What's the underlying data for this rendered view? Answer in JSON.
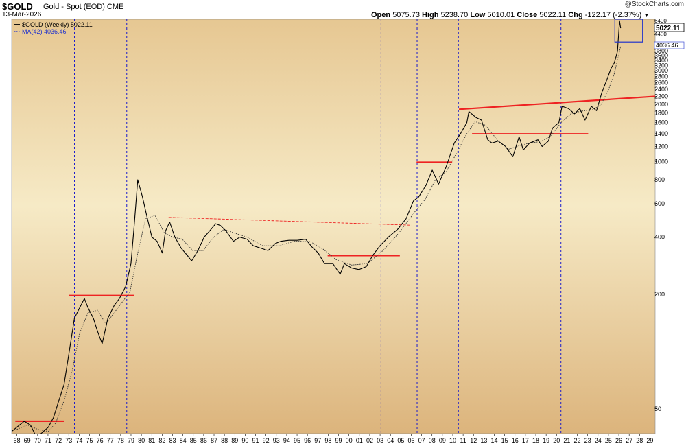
{
  "header": {
    "symbol": "$GOLD",
    "description": "Gold - Spot (EOD)",
    "exchange": "CME",
    "date": "13-Mar-2026",
    "watermark": "@StockCharts.com",
    "quote": {
      "open_label": "Open",
      "open": "5075.73",
      "high_label": "High",
      "high": "5238.70",
      "low_label": "Low",
      "low": "5010.01",
      "close_label": "Close",
      "close": "5022.11",
      "chg_label": "Chg",
      "chg": "-122.17 (-2.37%)"
    }
  },
  "legend": {
    "price_label": "$GOLD (Weekly) 5022.11",
    "ma_label": "MA(42) 4036.46"
  },
  "colors": {
    "plot_top": "#e6c792",
    "plot_mid": "#f6eac6",
    "plot_bottom": "#dcb47c",
    "price_line": "#000000",
    "ma_line": "#333333",
    "support_lines": "#ee2222",
    "cycle_lines": "#1a1acc",
    "highlight_box": "#2233cc"
  },
  "chart_data": {
    "type": "line",
    "title": "$GOLD Gold - Spot (EOD) CME",
    "y_scale": "log",
    "ylim": [
      37,
      5600
    ],
    "xlim": [
      1968.0,
      2029.5
    ],
    "x_tick_labels": [
      "68",
      "69",
      "70",
      "71",
      "72",
      "73",
      "74",
      "75",
      "76",
      "77",
      "78",
      "79",
      "80",
      "81",
      "82",
      "83",
      "84",
      "85",
      "86",
      "87",
      "88",
      "89",
      "90",
      "91",
      "92",
      "93",
      "94",
      "95",
      "96",
      "97",
      "98",
      "99",
      "00",
      "01",
      "02",
      "03",
      "04",
      "05",
      "06",
      "07",
      "08",
      "09",
      "10",
      "11",
      "12",
      "13",
      "14",
      "15",
      "16",
      "17",
      "18",
      "19",
      "20",
      "21",
      "22",
      "23",
      "24",
      "25",
      "26",
      "27",
      "28",
      "29"
    ],
    "y_ticks": [
      50,
      200,
      400,
      600,
      800,
      1000,
      1200,
      1400,
      1600,
      1800,
      2000,
      2200,
      2400,
      2600,
      2800,
      3000,
      3200,
      3400,
      3600,
      3800
    ],
    "y_ticks_top": [
      "6400",
      "5600",
      "4800",
      "4400"
    ],
    "current_price_label": "5022.11",
    "current_ma_label": "4036.46",
    "series": [
      {
        "name": "$GOLD (Weekly)",
        "x": [
          1968.0,
          1968.5,
          1969.2,
          1969.8,
          1970.3,
          1970.8,
          1971.5,
          1972.0,
          1972.5,
          1973.0,
          1973.5,
          1974.0,
          1974.5,
          1974.95,
          1975.3,
          1975.8,
          1976.2,
          1976.65,
          1977.2,
          1977.8,
          1978.3,
          1978.9,
          1979.4,
          1979.7,
          1980.05,
          1980.5,
          1980.9,
          1981.4,
          1981.9,
          1982.4,
          1982.7,
          1983.1,
          1983.6,
          1984.2,
          1984.8,
          1985.2,
          1985.8,
          1986.4,
          1986.9,
          1987.5,
          1987.95,
          1988.5,
          1989.2,
          1989.8,
          1990.5,
          1991.1,
          1991.8,
          1992.5,
          1993.2,
          1993.7,
          1994.5,
          1995.3,
          1996.1,
          1996.7,
          1997.3,
          1997.9,
          1998.7,
          1999.4,
          1999.8,
          2000.5,
          2001.2,
          2001.9,
          2002.5,
          2003.2,
          2004.0,
          2004.9,
          2005.7,
          2006.4,
          2006.9,
          2007.6,
          2008.2,
          2008.8,
          2009.5,
          2010.3,
          2010.9,
          2011.5,
          2011.7,
          2012.4,
          2012.9,
          2013.5,
          2013.9,
          2014.5,
          2015.2,
          2015.9,
          2016.5,
          2016.9,
          2017.5,
          2018.3,
          2018.7,
          2019.3,
          2019.7,
          2020.3,
          2020.6,
          2021.2,
          2021.8,
          2022.3,
          2022.8,
          2023.4,
          2023.9,
          2024.4,
          2024.9,
          2025.3,
          2025.6,
          2025.9,
          2026.1,
          2026.2
        ],
        "values": [
          38,
          40,
          43,
          41,
          36,
          37,
          40,
          45,
          55,
          67,
          100,
          150,
          170,
          190,
          170,
          150,
          128,
          110,
          150,
          175,
          190,
          220,
          290,
          450,
          800,
          650,
          520,
          400,
          380,
          330,
          430,
          480,
          400,
          350,
          320,
          300,
          340,
          400,
          430,
          470,
          460,
          430,
          380,
          400,
          390,
          360,
          350,
          340,
          370,
          380,
          385,
          385,
          390,
          355,
          330,
          290,
          290,
          255,
          290,
          275,
          270,
          280,
          320,
          360,
          400,
          440,
          500,
          620,
          650,
          750,
          900,
          760,
          930,
          1250,
          1400,
          1600,
          1830,
          1700,
          1650,
          1300,
          1250,
          1280,
          1200,
          1060,
          1350,
          1150,
          1250,
          1300,
          1200,
          1280,
          1500,
          1600,
          1950,
          1900,
          1780,
          1900,
          1650,
          1950,
          1850,
          2300,
          2700,
          3100,
          3300,
          3800,
          5500,
          5022
        ]
      },
      {
        "name": "MA(42)",
        "x": [
          1968.5,
          1969.5,
          1970.5,
          1971.5,
          1972.2,
          1973.0,
          1973.8,
          1974.5,
          1975.3,
          1976.2,
          1977.0,
          1977.8,
          1978.5,
          1979.3,
          1980.0,
          1980.8,
          1981.7,
          1982.6,
          1983.4,
          1984.3,
          1985.3,
          1986.3,
          1987.3,
          1988.3,
          1989.3,
          1990.5,
          1992.0,
          1993.5,
          1995.0,
          1996.5,
          1997.8,
          1999.0,
          2000.5,
          2002.0,
          2003.5,
          2005.0,
          2006.5,
          2007.5,
          2008.5,
          2009.5,
          2010.5,
          2011.5,
          2012.3,
          2013.3,
          2014.5,
          2015.5,
          2016.5,
          2017.5,
          2018.5,
          2019.5,
          2020.5,
          2021.5,
          2022.5,
          2023.5,
          2024.3,
          2025.0,
          2025.6,
          2026.2
        ],
        "values": [
          39,
          41,
          39,
          38,
          42,
          55,
          80,
          125,
          160,
          165,
          140,
          160,
          180,
          205,
          320,
          500,
          520,
          420,
          400,
          390,
          340,
          340,
          400,
          440,
          420,
          400,
          360,
          360,
          380,
          380,
          345,
          305,
          285,
          290,
          340,
          420,
          540,
          630,
          800,
          880,
          1100,
          1400,
          1620,
          1550,
          1280,
          1160,
          1210,
          1250,
          1270,
          1350,
          1600,
          1790,
          1840,
          1870,
          1980,
          2350,
          2900,
          4036
        ]
      }
    ],
    "annotations": {
      "vertical_cycle_lines": [
        1974.0,
        1979.0,
        2003.3,
        2006.75,
        2010.7,
        2020.5
      ],
      "horizontal_levels": [
        {
          "x1": 1968.35,
          "x2": 1973.0,
          "y": 43
        },
        {
          "x1": 1973.5,
          "x2": 1979.7,
          "y": 197
        },
        {
          "x1": 1998.2,
          "x2": 2005.1,
          "y": 320
        },
        {
          "x1": 2006.7,
          "x2": 2010.1,
          "y": 990
        },
        {
          "x1": 2012.0,
          "x2": 2023.1,
          "y": 1400
        }
      ],
      "sloped_levels": [
        {
          "x1": 2010.75,
          "y1": 1880,
          "x2": 2029.5,
          "y2": 2200
        }
      ],
      "dashed_trendlines": [
        {
          "x1": 1983.0,
          "y1": 508,
          "x2": 2006.2,
          "y2": 462
        }
      ],
      "highlight_box": {
        "x1": 2025.65,
        "y1": 4250,
        "x2": 2028.3,
        "y2": 6700
      }
    }
  }
}
